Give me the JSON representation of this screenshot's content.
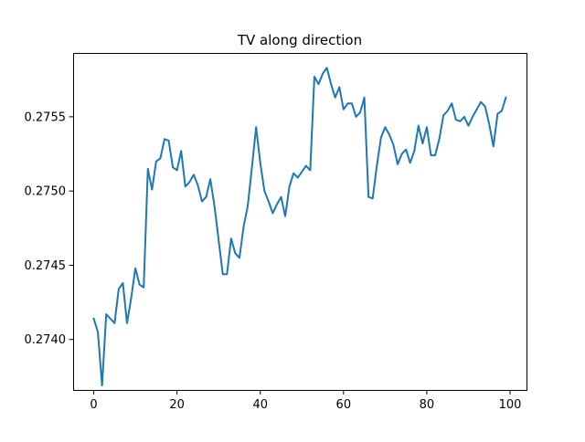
{
  "chart_data": {
    "type": "line",
    "title": "TV along direction",
    "xlabel": "",
    "ylabel": "",
    "xlim": [
      -4.95,
      103.95
    ],
    "ylim": [
      0.27366,
      0.27593
    ],
    "grid": false,
    "x_ticks": [
      {
        "value": 0,
        "label": "0"
      },
      {
        "value": 20,
        "label": "20"
      },
      {
        "value": 40,
        "label": "40"
      },
      {
        "value": 60,
        "label": "60"
      },
      {
        "value": 80,
        "label": "80"
      },
      {
        "value": 100,
        "label": "100"
      }
    ],
    "y_ticks": [
      {
        "value": 0.274,
        "label": "0.2740"
      },
      {
        "value": 0.2745,
        "label": "0.2745"
      },
      {
        "value": 0.275,
        "label": "0.2750"
      },
      {
        "value": 0.2755,
        "label": "0.2755"
      }
    ],
    "series": [
      {
        "color": "#1f77b4",
        "x": [
          0,
          1,
          2,
          3,
          4,
          5,
          6,
          7,
          8,
          9,
          10,
          11,
          12,
          13,
          14,
          15,
          16,
          17,
          18,
          19,
          20,
          21,
          22,
          23,
          24,
          25,
          26,
          27,
          28,
          29,
          30,
          31,
          32,
          33,
          34,
          35,
          36,
          37,
          38,
          39,
          40,
          41,
          42,
          43,
          44,
          45,
          46,
          47,
          48,
          49,
          50,
          51,
          52,
          53,
          54,
          55,
          56,
          57,
          58,
          59,
          60,
          61,
          62,
          63,
          64,
          65,
          66,
          67,
          68,
          69,
          70,
          71,
          72,
          73,
          74,
          75,
          76,
          77,
          78,
          79,
          80,
          81,
          82,
          83,
          84,
          85,
          86,
          87,
          88,
          89,
          90,
          91,
          92,
          93,
          94,
          95,
          96,
          97,
          98,
          99
        ],
        "values": [
          0.27414,
          0.27405,
          0.27369,
          0.27417,
          0.27414,
          0.27411,
          0.27434,
          0.27438,
          0.27411,
          0.27428,
          0.27448,
          0.27437,
          0.27435,
          0.27515,
          0.27501,
          0.2752,
          0.27522,
          0.27535,
          0.27534,
          0.27516,
          0.27514,
          0.27527,
          0.27503,
          0.27506,
          0.27511,
          0.27504,
          0.27493,
          0.27496,
          0.27508,
          0.2749,
          0.27467,
          0.27444,
          0.27444,
          0.27468,
          0.27458,
          0.27455,
          0.27476,
          0.2749,
          0.27516,
          0.27543,
          0.27519,
          0.275,
          0.27493,
          0.27485,
          0.27491,
          0.27496,
          0.27483,
          0.27503,
          0.27512,
          0.27509,
          0.27513,
          0.27517,
          0.27514,
          0.27577,
          0.27572,
          0.27579,
          0.27583,
          0.27572,
          0.27563,
          0.2757,
          0.27555,
          0.27559,
          0.27559,
          0.2755,
          0.27553,
          0.27563,
          0.27496,
          0.27495,
          0.27517,
          0.27536,
          0.27543,
          0.27538,
          0.27531,
          0.27518,
          0.27525,
          0.27528,
          0.27519,
          0.27527,
          0.27544,
          0.27532,
          0.27543,
          0.27524,
          0.27524,
          0.27535,
          0.27551,
          0.27554,
          0.27559,
          0.27548,
          0.27547,
          0.2755,
          0.27544,
          0.2755,
          0.27555,
          0.2756,
          0.27557,
          0.27545,
          0.2753,
          0.27552,
          0.27554,
          0.27563
        ]
      }
    ]
  }
}
